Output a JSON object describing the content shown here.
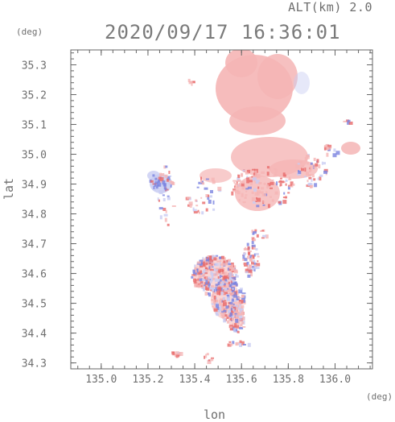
{
  "header": {
    "altitude": "ALT(km) 2.0",
    "datetime": "2020/09/17 16:36:01"
  },
  "axes": {
    "y_unit": "(deg)",
    "x_unit": "(deg)",
    "x_label": "lon",
    "y_label": "lat",
    "x_ticks": [
      {
        "value": 135.0,
        "label": "135.0"
      },
      {
        "value": 135.2,
        "label": "135.2"
      },
      {
        "value": 135.4,
        "label": "135.4"
      },
      {
        "value": 135.6,
        "label": "135.6"
      },
      {
        "value": 135.8,
        "label": "135.8"
      },
      {
        "value": 136.0,
        "label": "136.0"
      }
    ],
    "y_ticks": [
      {
        "value": 35.3,
        "label": "35.3"
      },
      {
        "value": 35.2,
        "label": "35.2"
      },
      {
        "value": 35.1,
        "label": "35.1"
      },
      {
        "value": 35.0,
        "label": "35.0"
      },
      {
        "value": 34.9,
        "label": "34.9"
      },
      {
        "value": 34.8,
        "label": "34.8"
      },
      {
        "value": 34.7,
        "label": "34.7"
      },
      {
        "value": 34.6,
        "label": "34.6"
      },
      {
        "value": 34.5,
        "label": "34.5"
      },
      {
        "value": 34.4,
        "label": "34.4"
      },
      {
        "value": 34.3,
        "label": "34.3"
      }
    ],
    "x_range": [
      134.87,
      136.16
    ],
    "y_range": [
      34.28,
      35.35
    ]
  },
  "colors": {
    "positive": "#f5b5b5",
    "negative": "#c8ccf2",
    "strong_positive": "#e86a6a",
    "strong_negative": "#7b83e0",
    "frame": "#666666"
  }
}
